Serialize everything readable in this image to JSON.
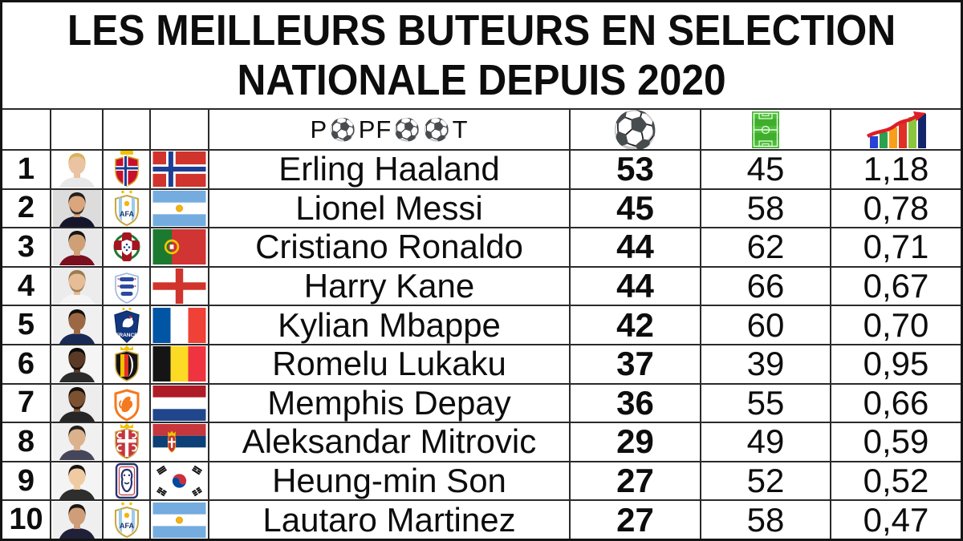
{
  "title": {
    "line1": "LES MEILLEURS BUTEURS EN SELECTION",
    "line2": "NATIONALE DEPUIS 2020"
  },
  "brand": {
    "name": "PopFoot",
    "parts": [
      "P",
      "PF",
      "T"
    ],
    "ball_char": "⚽"
  },
  "header": {
    "goals_icon": "soccer-ball-icon",
    "matches_icon": "football-pitch-icon",
    "ratio_icon": "rising-bar-chart-icon"
  },
  "palette": {
    "border": "#141414",
    "grid_line": "#2a2a2a",
    "text": "#0d0d0d",
    "chart_bar_colors": [
      "#2742d7",
      "#2ba04f",
      "#f6a01a",
      "#e03127",
      "#8cc63e",
      "#14266b"
    ],
    "chart_arrow": "#dd1f26",
    "pitch_green": "#3fae2a"
  },
  "chart_data": {
    "type": "table",
    "title": "LES MEILLEURS BUTEURS EN SELECTION NATIONALE DEPUIS 2020",
    "columns": [
      "rang",
      "photo",
      "ecusson",
      "drapeau",
      "joueur",
      "buts",
      "selections",
      "ratio"
    ],
    "rows": [
      {
        "rank": 1,
        "player": "Erling Haaland",
        "country": "Norway",
        "code": "nor",
        "goals": 53,
        "matches": 45,
        "ratio": "1,18"
      },
      {
        "rank": 2,
        "player": "Lionel Messi",
        "country": "Argentina",
        "code": "arg",
        "goals": 45,
        "matches": 58,
        "ratio": "0,78"
      },
      {
        "rank": 3,
        "player": "Cristiano Ronaldo",
        "country": "Portugal",
        "code": "por",
        "goals": 44,
        "matches": 62,
        "ratio": "0,71"
      },
      {
        "rank": 4,
        "player": "Harry Kane",
        "country": "England",
        "code": "eng",
        "goals": 44,
        "matches": 66,
        "ratio": "0,67"
      },
      {
        "rank": 5,
        "player": "Kylian Mbappe",
        "country": "France",
        "code": "fra",
        "goals": 42,
        "matches": 60,
        "ratio": "0,70"
      },
      {
        "rank": 6,
        "player": "Romelu Lukaku",
        "country": "Belgium",
        "code": "bel",
        "goals": 37,
        "matches": 39,
        "ratio": "0,95"
      },
      {
        "rank": 7,
        "player": "Memphis Depay",
        "country": "Netherlands",
        "code": "ned",
        "goals": 36,
        "matches": 55,
        "ratio": "0,66"
      },
      {
        "rank": 8,
        "player": "Aleksandar Mitrovic",
        "country": "Serbia",
        "code": "srb",
        "goals": 29,
        "matches": 49,
        "ratio": "0,59"
      },
      {
        "rank": 9,
        "player": "Heung-min Son",
        "country": "South Korea",
        "code": "kor",
        "goals": 27,
        "matches": 52,
        "ratio": "0,52"
      },
      {
        "rank": 10,
        "player": "Lautaro Martinez",
        "country": "Argentina",
        "code": "arg",
        "goals": 27,
        "matches": 58,
        "ratio": "0,47"
      }
    ]
  }
}
